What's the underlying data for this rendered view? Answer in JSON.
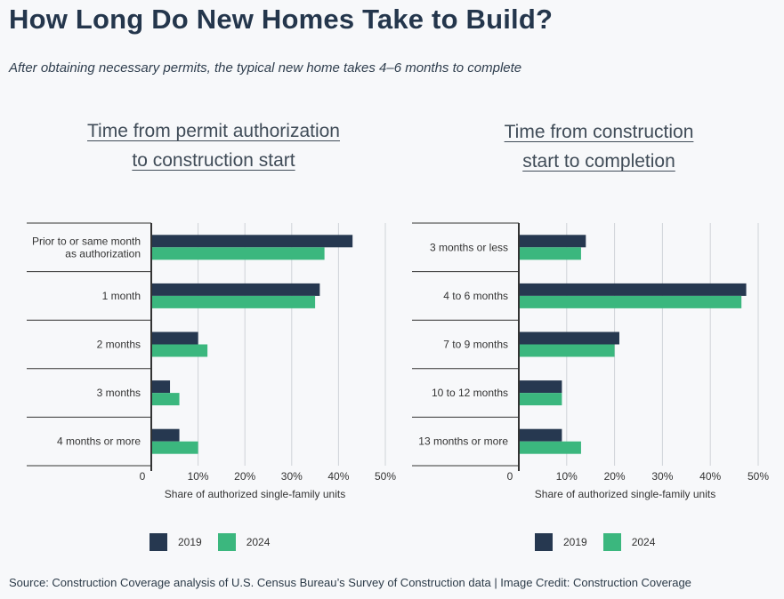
{
  "header": {
    "title": "How Long Do New Homes Take to Build?",
    "subtitle": "After obtaining necessary permits, the typical new home takes 4–6 months to complete"
  },
  "colors": {
    "series_2019": "#263850",
    "series_2024": "#3bb77e"
  },
  "legend": {
    "label_2019": "2019",
    "label_2024": "2024"
  },
  "source": "Source: Construction Coverage analysis of U.S. Census Bureau’s Survey of Construction data | Image Credit: Construction Coverage",
  "chart_data": [
    {
      "type": "bar",
      "orientation": "horizontal",
      "title_line1": "Time from permit authorization",
      "title_line2": "to construction start",
      "xlabel": "Share of authorized single-family units",
      "xlim": [
        0,
        50
      ],
      "xticks": [
        "0",
        "10%",
        "20%",
        "30%",
        "40%",
        "50%"
      ],
      "grid": true,
      "legend_position": "bottom",
      "categories": [
        [
          "Prior to or same month",
          "as authorization"
        ],
        [
          "1 month"
        ],
        [
          "2 months"
        ],
        [
          "3 months"
        ],
        [
          "4 months or more"
        ]
      ],
      "series": [
        {
          "name": "2019",
          "values": [
            43,
            36,
            10,
            4,
            6
          ]
        },
        {
          "name": "2024",
          "values": [
            37,
            35,
            12,
            6,
            10
          ]
        }
      ]
    },
    {
      "type": "bar",
      "orientation": "horizontal",
      "title_line1": "Time from construction",
      "title_line2": "start to completion",
      "xlabel": "Share of authorized single-family units",
      "xlim": [
        0,
        50
      ],
      "xticks": [
        "0",
        "10%",
        "20%",
        "30%",
        "40%",
        "50%"
      ],
      "grid": true,
      "legend_position": "bottom",
      "categories": [
        [
          "3 months or less"
        ],
        [
          "4 to 6 months"
        ],
        [
          "7 to 9 months"
        ],
        [
          "10 to 12 months"
        ],
        [
          "13 months or more"
        ]
      ],
      "series": [
        {
          "name": "2019",
          "values": [
            14,
            47.5,
            21,
            9,
            9
          ]
        },
        {
          "name": "2024",
          "values": [
            13,
            46.5,
            20,
            9,
            13
          ]
        }
      ]
    }
  ]
}
